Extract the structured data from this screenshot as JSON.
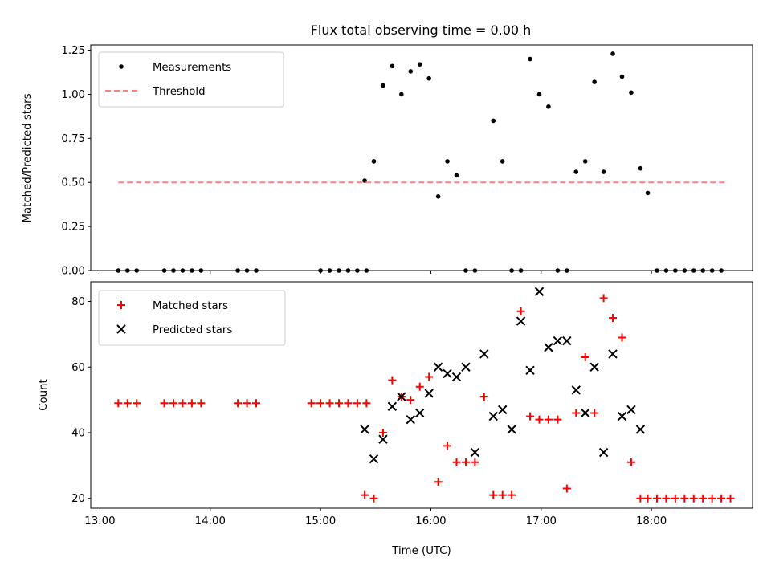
{
  "chart_data": [
    {
      "type": "scatter",
      "title": "Flux total observing time = 0.00 h",
      "xlabel": "",
      "ylabel": "Matched/Predicted stars",
      "xlim": [
        "12:55",
        "18:55"
      ],
      "ylim": [
        0,
        1.28
      ],
      "x_ticks": [
        "13:00",
        "14:00",
        "15:00",
        "16:00",
        "17:00",
        "18:00"
      ],
      "y_ticks": [
        "0.00",
        "0.25",
        "0.50",
        "0.75",
        "1.00",
        "1.25"
      ],
      "legend_position": "upper left",
      "grid": false,
      "series": [
        {
          "name": "Measurements",
          "kind": "points",
          "color": "#000000",
          "x": [
            "13:10",
            "13:15",
            "13:20",
            "13:35",
            "13:40",
            "13:45",
            "13:50",
            "13:55",
            "14:15",
            "14:20",
            "14:25",
            "15:00",
            "15:05",
            "15:10",
            "15:15",
            "15:20",
            "15:25",
            "15:24",
            "15:29",
            "15:34",
            "15:39",
            "15:44",
            "15:49",
            "15:54",
            "15:59",
            "16:04",
            "16:09",
            "16:14",
            "16:19",
            "16:24",
            "16:34",
            "16:39",
            "16:44",
            "16:49",
            "16:54",
            "16:59",
            "17:04",
            "17:09",
            "17:14",
            "17:19",
            "17:24",
            "17:29",
            "17:34",
            "17:39",
            "17:44",
            "17:49",
            "17:54",
            "17:58",
            "18:03",
            "18:08",
            "18:13",
            "18:18",
            "18:23",
            "18:28",
            "18:33",
            "18:38"
          ],
          "y": [
            0,
            0,
            0,
            0,
            0,
            0,
            0,
            0,
            0,
            0,
            0,
            0,
            0,
            0,
            0,
            0,
            0,
            0.51,
            0.62,
            1.05,
            1.16,
            1.0,
            1.13,
            1.17,
            1.09,
            0.42,
            0.62,
            0.54,
            0,
            0,
            0.85,
            0.62,
            0,
            0,
            1.2,
            1.0,
            0.93,
            0,
            0,
            0.56,
            0.62,
            1.07,
            0.56,
            1.23,
            1.1,
            1.01,
            0.58,
            0.44,
            0,
            0,
            0,
            0,
            0,
            0,
            0,
            0
          ]
        },
        {
          "name": "Threshold",
          "kind": "dashed-line",
          "color": "#ff7f7f",
          "x": [
            "13:10",
            "18:40"
          ],
          "y": [
            0.5,
            0.5
          ]
        }
      ]
    },
    {
      "type": "scatter",
      "title": "",
      "xlabel": "Time (UTC)",
      "ylabel": "Count",
      "xlim": [
        "12:55",
        "18:55"
      ],
      "ylim": [
        17,
        86
      ],
      "x_ticks": [
        "13:00",
        "14:00",
        "15:00",
        "16:00",
        "17:00",
        "18:00"
      ],
      "y_ticks": [
        "20",
        "40",
        "60",
        "80"
      ],
      "legend_position": "upper left",
      "grid": false,
      "series": [
        {
          "name": "Matched stars",
          "marker": "plus",
          "color": "#ff0000",
          "x": [
            "13:10",
            "13:15",
            "13:20",
            "13:35",
            "13:40",
            "13:45",
            "13:50",
            "13:55",
            "14:15",
            "14:20",
            "14:25",
            "14:55",
            "15:00",
            "15:05",
            "15:10",
            "15:15",
            "15:20",
            "15:25",
            "15:24",
            "15:29",
            "15:34",
            "15:39",
            "15:44",
            "15:49",
            "15:54",
            "15:59",
            "16:04",
            "16:09",
            "16:14",
            "16:19",
            "16:24",
            "16:29",
            "16:34",
            "16:39",
            "16:44",
            "16:49",
            "16:54",
            "16:59",
            "17:04",
            "17:09",
            "17:14",
            "17:19",
            "17:24",
            "17:29",
            "17:34",
            "17:39",
            "17:44",
            "17:49",
            "17:54",
            "17:58",
            "18:03",
            "18:08",
            "18:13",
            "18:18",
            "18:23",
            "18:28",
            "18:33",
            "18:38",
            "18:43"
          ],
          "y": [
            49,
            49,
            49,
            49,
            49,
            49,
            49,
            49,
            49,
            49,
            49,
            49,
            49,
            49,
            49,
            49,
            49,
            49,
            21,
            20,
            40,
            56,
            51,
            50,
            54,
            57,
            25,
            36,
            31,
            31,
            31,
            51,
            21,
            21,
            21,
            77,
            45,
            44,
            44,
            44,
            23,
            46,
            63,
            46,
            81,
            75,
            69,
            31,
            20,
            20,
            20,
            20,
            20,
            20,
            20,
            20,
            20,
            20,
            20
          ]
        },
        {
          "name": "Predicted stars",
          "marker": "x",
          "color": "#000000",
          "x": [
            "15:24",
            "15:29",
            "15:34",
            "15:39",
            "15:44",
            "15:49",
            "15:54",
            "15:59",
            "16:04",
            "16:09",
            "16:14",
            "16:19",
            "16:24",
            "16:29",
            "16:34",
            "16:39",
            "16:44",
            "16:49",
            "16:54",
            "16:59",
            "17:04",
            "17:09",
            "17:14",
            "17:19",
            "17:24",
            "17:29",
            "17:34",
            "17:39",
            "17:44",
            "17:49",
            "17:54"
          ],
          "y": [
            41,
            32,
            38,
            48,
            51,
            44,
            46,
            52,
            60,
            58,
            57,
            60,
            34,
            64,
            45,
            47,
            41,
            74,
            59,
            83,
            66,
            68,
            68,
            53,
            46,
            60,
            34,
            64,
            45,
            47,
            41
          ]
        }
      ]
    }
  ]
}
